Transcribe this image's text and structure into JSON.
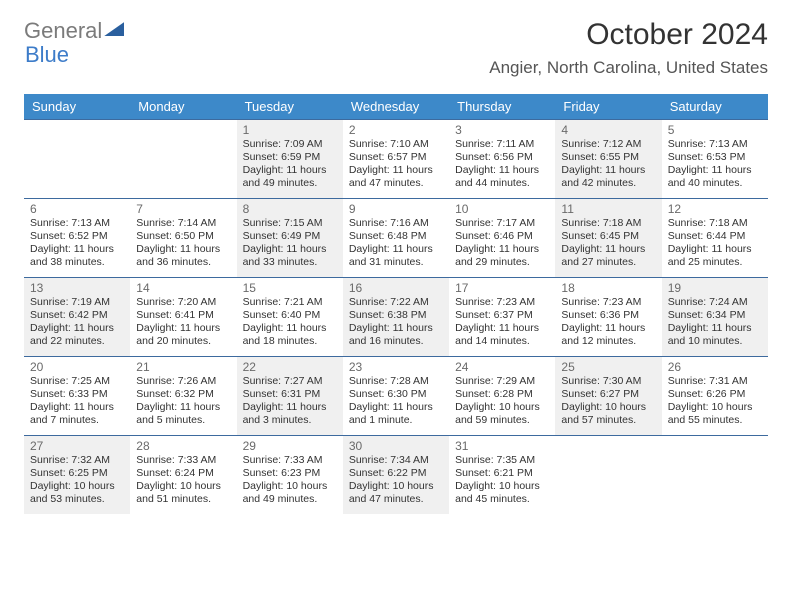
{
  "logo": {
    "part1": "General",
    "part2": "Blue"
  },
  "title": "October 2024",
  "location": "Angier, North Carolina, United States",
  "colors": {
    "header_bg": "#3d89c9",
    "header_text": "#ffffff",
    "divider": "#3d6a9e",
    "shade_bg": "#f0f0f0",
    "cell_bg": "#ffffff",
    "text": "#333333",
    "daynum": "#6a6a6a"
  },
  "typography": {
    "title_fontsize": 30,
    "location_fontsize": 17,
    "dayname_fontsize": 13,
    "daynum_fontsize": 12,
    "info_fontsize": 10.5
  },
  "dayNames": [
    "Sunday",
    "Monday",
    "Tuesday",
    "Wednesday",
    "Thursday",
    "Friday",
    "Saturday"
  ],
  "weeks": [
    [
      {
        "empty": true,
        "shade": false
      },
      {
        "empty": true,
        "shade": false
      },
      {
        "day": "1",
        "shade": true,
        "sunrise": "7:09 AM",
        "sunset": "6:59 PM",
        "daylight": "11 hours and 49 minutes."
      },
      {
        "day": "2",
        "shade": false,
        "sunrise": "7:10 AM",
        "sunset": "6:57 PM",
        "daylight": "11 hours and 47 minutes."
      },
      {
        "day": "3",
        "shade": false,
        "sunrise": "7:11 AM",
        "sunset": "6:56 PM",
        "daylight": "11 hours and 44 minutes."
      },
      {
        "day": "4",
        "shade": true,
        "sunrise": "7:12 AM",
        "sunset": "6:55 PM",
        "daylight": "11 hours and 42 minutes."
      },
      {
        "day": "5",
        "shade": false,
        "sunrise": "7:13 AM",
        "sunset": "6:53 PM",
        "daylight": "11 hours and 40 minutes."
      }
    ],
    [
      {
        "day": "6",
        "shade": false,
        "sunrise": "7:13 AM",
        "sunset": "6:52 PM",
        "daylight": "11 hours and 38 minutes."
      },
      {
        "day": "7",
        "shade": false,
        "sunrise": "7:14 AM",
        "sunset": "6:50 PM",
        "daylight": "11 hours and 36 minutes."
      },
      {
        "day": "8",
        "shade": true,
        "sunrise": "7:15 AM",
        "sunset": "6:49 PM",
        "daylight": "11 hours and 33 minutes."
      },
      {
        "day": "9",
        "shade": false,
        "sunrise": "7:16 AM",
        "sunset": "6:48 PM",
        "daylight": "11 hours and 31 minutes."
      },
      {
        "day": "10",
        "shade": false,
        "sunrise": "7:17 AM",
        "sunset": "6:46 PM",
        "daylight": "11 hours and 29 minutes."
      },
      {
        "day": "11",
        "shade": true,
        "sunrise": "7:18 AM",
        "sunset": "6:45 PM",
        "daylight": "11 hours and 27 minutes."
      },
      {
        "day": "12",
        "shade": false,
        "sunrise": "7:18 AM",
        "sunset": "6:44 PM",
        "daylight": "11 hours and 25 minutes."
      }
    ],
    [
      {
        "day": "13",
        "shade": true,
        "sunrise": "7:19 AM",
        "sunset": "6:42 PM",
        "daylight": "11 hours and 22 minutes."
      },
      {
        "day": "14",
        "shade": false,
        "sunrise": "7:20 AM",
        "sunset": "6:41 PM",
        "daylight": "11 hours and 20 minutes."
      },
      {
        "day": "15",
        "shade": false,
        "sunrise": "7:21 AM",
        "sunset": "6:40 PM",
        "daylight": "11 hours and 18 minutes."
      },
      {
        "day": "16",
        "shade": true,
        "sunrise": "7:22 AM",
        "sunset": "6:38 PM",
        "daylight": "11 hours and 16 minutes."
      },
      {
        "day": "17",
        "shade": false,
        "sunrise": "7:23 AM",
        "sunset": "6:37 PM",
        "daylight": "11 hours and 14 minutes."
      },
      {
        "day": "18",
        "shade": false,
        "sunrise": "7:23 AM",
        "sunset": "6:36 PM",
        "daylight": "11 hours and 12 minutes."
      },
      {
        "day": "19",
        "shade": true,
        "sunrise": "7:24 AM",
        "sunset": "6:34 PM",
        "daylight": "11 hours and 10 minutes."
      }
    ],
    [
      {
        "day": "20",
        "shade": false,
        "sunrise": "7:25 AM",
        "sunset": "6:33 PM",
        "daylight": "11 hours and 7 minutes."
      },
      {
        "day": "21",
        "shade": false,
        "sunrise": "7:26 AM",
        "sunset": "6:32 PM",
        "daylight": "11 hours and 5 minutes."
      },
      {
        "day": "22",
        "shade": true,
        "sunrise": "7:27 AM",
        "sunset": "6:31 PM",
        "daylight": "11 hours and 3 minutes."
      },
      {
        "day": "23",
        "shade": false,
        "sunrise": "7:28 AM",
        "sunset": "6:30 PM",
        "daylight": "11 hours and 1 minute."
      },
      {
        "day": "24",
        "shade": false,
        "sunrise": "7:29 AM",
        "sunset": "6:28 PM",
        "daylight": "10 hours and 59 minutes."
      },
      {
        "day": "25",
        "shade": true,
        "sunrise": "7:30 AM",
        "sunset": "6:27 PM",
        "daylight": "10 hours and 57 minutes."
      },
      {
        "day": "26",
        "shade": false,
        "sunrise": "7:31 AM",
        "sunset": "6:26 PM",
        "daylight": "10 hours and 55 minutes."
      }
    ],
    [
      {
        "day": "27",
        "shade": true,
        "sunrise": "7:32 AM",
        "sunset": "6:25 PM",
        "daylight": "10 hours and 53 minutes."
      },
      {
        "day": "28",
        "shade": false,
        "sunrise": "7:33 AM",
        "sunset": "6:24 PM",
        "daylight": "10 hours and 51 minutes."
      },
      {
        "day": "29",
        "shade": false,
        "sunrise": "7:33 AM",
        "sunset": "6:23 PM",
        "daylight": "10 hours and 49 minutes."
      },
      {
        "day": "30",
        "shade": true,
        "sunrise": "7:34 AM",
        "sunset": "6:22 PM",
        "daylight": "10 hours and 47 minutes."
      },
      {
        "day": "31",
        "shade": false,
        "sunrise": "7:35 AM",
        "sunset": "6:21 PM",
        "daylight": "10 hours and 45 minutes."
      },
      {
        "empty": true,
        "shade": false
      },
      {
        "empty": true,
        "shade": false
      }
    ]
  ],
  "labels": {
    "sunrise": "Sunrise:",
    "sunset": "Sunset:",
    "daylight": "Daylight:"
  }
}
